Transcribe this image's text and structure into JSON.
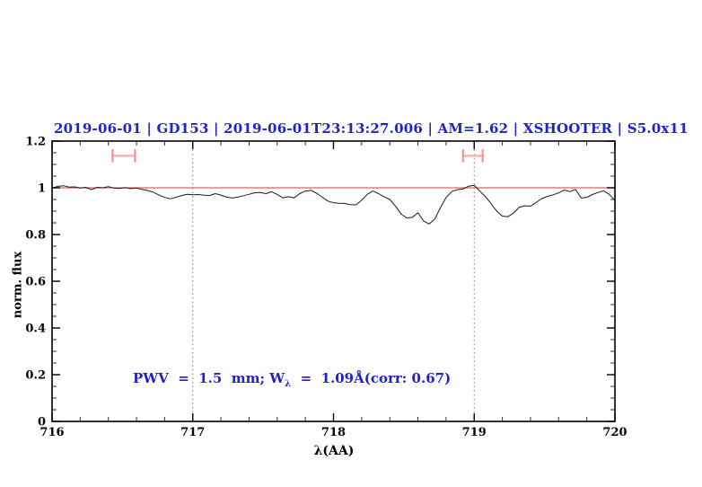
{
  "title": "2019-06-01 | GD153 | 2019-06-01T23:13:27.006 | AM=1.62 | XSHOOTER | S5.0x11",
  "annotation": {
    "pre": "PWV  =  1.5  mm; W",
    "sub": "λ",
    "post": "  =  1.09Å(corr: 0.67)"
  },
  "colors": {
    "title_blue": "#2222cc",
    "annotation_blue": "#2222cc",
    "reference_red": "#e06060",
    "marker_bar_pink": "#f5b4b4",
    "marker_cap_pink": "#ef8a8a",
    "vline_gray": "#777777",
    "spectrum_black": "#1a1a1a"
  },
  "chart_data": {
    "type": "line",
    "title": "2019-06-01 | GD153 | 2019-06-01T23:13:27.006 | AM=1.62 | XSHOOTER | S5.0x11",
    "xlabel": "λ(AA)",
    "ylabel": "norm. flux",
    "xlim": [
      716,
      720
    ],
    "ylim": [
      0,
      1.2
    ],
    "xticks": [
      716,
      717,
      718,
      719,
      720
    ],
    "xtick_labels": [
      "716",
      "717",
      "718",
      "719",
      "720"
    ],
    "yticks": [
      0,
      0.2,
      0.4,
      0.6,
      0.8,
      1,
      1.2
    ],
    "ytick_labels": [
      "0",
      "0.2",
      "0.4",
      "0.6",
      "0.8",
      "1",
      "1.2"
    ],
    "x_minor_step": 0.2,
    "y_minor_step": 0.05,
    "grid": false,
    "legend": null,
    "reference_line_y": 1.0,
    "dotted_vlines_x": [
      717,
      719
    ],
    "telluric_markers": [
      {
        "x_min": 716.43,
        "x_max": 716.59,
        "y": 1.137,
        "y_err": 0.028
      },
      {
        "x_min": 718.92,
        "x_max": 719.06,
        "y": 1.137,
        "y_err": 0.028
      }
    ],
    "series": [
      {
        "name": "normalized spectrum",
        "color": "#1a1a1a",
        "x_start": 716.0,
        "x_step": 0.04,
        "y": [
          0.998,
          1.006,
          1.009,
          1.003,
          1.004,
          0.999,
          1.002,
          0.992,
          1.002,
          1.0,
          1.005,
          0.999,
          0.997,
          1.001,
          0.996,
          0.999,
          0.993,
          0.988,
          0.981,
          0.969,
          0.959,
          0.953,
          0.959,
          0.967,
          0.972,
          0.97,
          0.971,
          0.968,
          0.967,
          0.975,
          0.969,
          0.96,
          0.956,
          0.96,
          0.966,
          0.972,
          0.979,
          0.98,
          0.975,
          0.983,
          0.972,
          0.957,
          0.962,
          0.957,
          0.975,
          0.986,
          0.989,
          0.977,
          0.96,
          0.943,
          0.936,
          0.934,
          0.933,
          0.928,
          0.927,
          0.947,
          0.972,
          0.986,
          0.975,
          0.961,
          0.95,
          0.922,
          0.888,
          0.871,
          0.873,
          0.893,
          0.858,
          0.845,
          0.866,
          0.915,
          0.958,
          0.984,
          0.992,
          0.995,
          1.007,
          1.01,
          0.986,
          0.962,
          0.932,
          0.9,
          0.879,
          0.876,
          0.892,
          0.917,
          0.923,
          0.921,
          0.937,
          0.954,
          0.963,
          0.97,
          0.978,
          0.99,
          0.984,
          0.993,
          0.956,
          0.959,
          0.971,
          0.98,
          0.987,
          0.972,
          0.947
        ]
      }
    ]
  }
}
